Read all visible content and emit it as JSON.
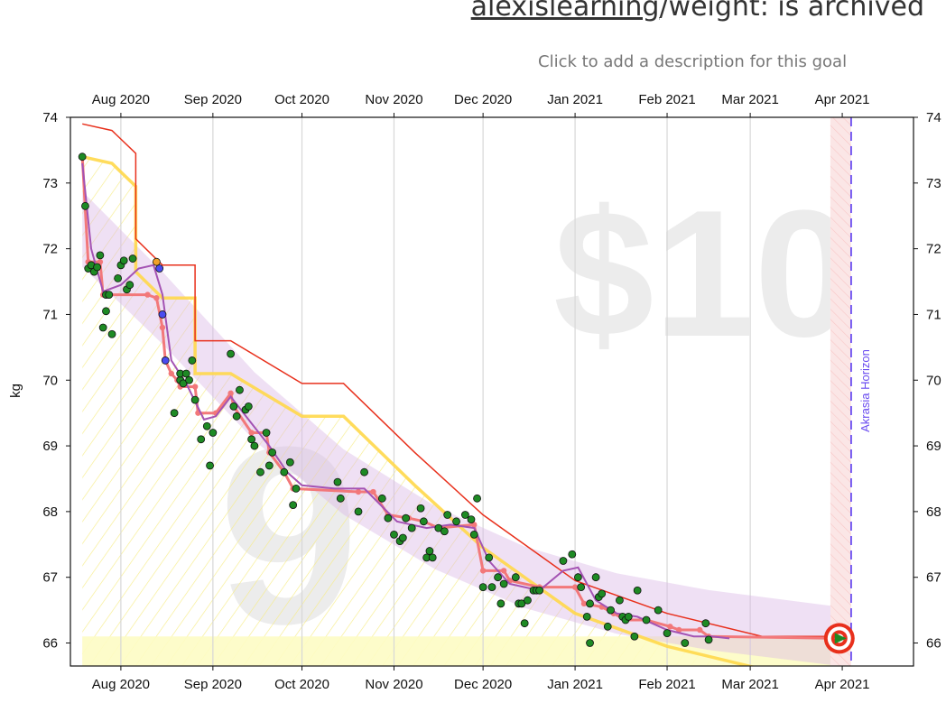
{
  "header": {
    "goal_user": "alexislearning",
    "goal_rest": "/weight: is archived",
    "description_prompt": "Click to add a description for this goal"
  },
  "chart_data": {
    "type": "scatter",
    "title": "alexislearning/weight: is archived",
    "xlabel": "",
    "ylabel": "kg",
    "x_range": [
      "2020-07-15",
      "2021-04-25"
    ],
    "ylim": [
      65.65,
      74.0
    ],
    "x_ticks": [
      {
        "date": "2020-08-01",
        "label": "Aug 2020"
      },
      {
        "date": "2020-09-01",
        "label": "Sep 2020"
      },
      {
        "date": "2020-10-01",
        "label": "Oct 2020"
      },
      {
        "date": "2020-11-01",
        "label": "Nov 2020"
      },
      {
        "date": "2020-12-01",
        "label": "Dec 2020"
      },
      {
        "date": "2021-01-01",
        "label": "Jan 2021"
      },
      {
        "date": "2021-02-01",
        "label": "Feb 2021"
      },
      {
        "date": "2021-03-01",
        "label": "Mar 2021"
      },
      {
        "date": "2021-04-01",
        "label": "Apr 2021"
      }
    ],
    "y_ticks": [
      66,
      67,
      68,
      69,
      70,
      71,
      72,
      73,
      74
    ],
    "watermark_pledge": "$10",
    "watermark_days": "9",
    "akrasia_label": "Akrasia Horizon",
    "akrasia_date": "2021-04-04",
    "target_date": "2021-03-31",
    "target_value": 66.07,
    "grid": true,
    "colors": {
      "datapoint": "#1e8a24",
      "beemin": "#f2787a",
      "moving_avg": "#a453b3",
      "road": "#e8301c",
      "yellow_brick": "#ffd84a",
      "watermark": "#ececec",
      "akrasia": "#6a4cf0"
    },
    "datapoints": [
      [
        "2020-07-19",
        73.4
      ],
      [
        "2020-07-20",
        72.65
      ],
      [
        "2020-07-21",
        71.7
      ],
      [
        "2020-07-22",
        71.75
      ],
      [
        "2020-07-23",
        71.65
      ],
      [
        "2020-07-24",
        71.72
      ],
      [
        "2020-07-25",
        71.9
      ],
      [
        "2020-07-26",
        70.8
      ],
      [
        "2020-07-27",
        71.05
      ],
      [
        "2020-07-27",
        71.3
      ],
      [
        "2020-07-28",
        71.3
      ],
      [
        "2020-07-29",
        70.7
      ],
      [
        "2020-07-31",
        71.55
      ],
      [
        "2020-08-01",
        71.75
      ],
      [
        "2020-08-02",
        71.82
      ],
      [
        "2020-08-03",
        71.38
      ],
      [
        "2020-08-04",
        71.45
      ],
      [
        "2020-08-05",
        71.85
      ],
      [
        "2020-08-19",
        69.5
      ],
      [
        "2020-08-21",
        70.0
      ],
      [
        "2020-08-21",
        70.1
      ],
      [
        "2020-08-22",
        69.95
      ],
      [
        "2020-08-23",
        70.1
      ],
      [
        "2020-08-24",
        70.0
      ],
      [
        "2020-08-25",
        70.3
      ],
      [
        "2020-08-26",
        69.7
      ],
      [
        "2020-08-28",
        69.1
      ],
      [
        "2020-08-30",
        69.3
      ],
      [
        "2020-08-31",
        68.7
      ],
      [
        "2020-09-01",
        69.2
      ],
      [
        "2020-09-07",
        70.4
      ],
      [
        "2020-09-08",
        69.6
      ],
      [
        "2020-09-09",
        69.45
      ],
      [
        "2020-09-10",
        69.85
      ],
      [
        "2020-09-12",
        69.55
      ],
      [
        "2020-09-13",
        69.6
      ],
      [
        "2020-09-14",
        69.1
      ],
      [
        "2020-09-15",
        69.0
      ],
      [
        "2020-09-17",
        68.6
      ],
      [
        "2020-09-19",
        69.2
      ],
      [
        "2020-09-20",
        68.7
      ],
      [
        "2020-09-21",
        68.9
      ],
      [
        "2020-09-25",
        68.6
      ],
      [
        "2020-09-27",
        68.75
      ],
      [
        "2020-09-28",
        68.1
      ],
      [
        "2020-09-29",
        68.35
      ],
      [
        "2020-10-13",
        68.45
      ],
      [
        "2020-10-14",
        68.2
      ],
      [
        "2020-10-20",
        68.0
      ],
      [
        "2020-10-22",
        68.6
      ],
      [
        "2020-10-28",
        68.2
      ],
      [
        "2020-10-30",
        67.9
      ],
      [
        "2020-11-01",
        67.65
      ],
      [
        "2020-11-03",
        67.55
      ],
      [
        "2020-11-04",
        67.6
      ],
      [
        "2020-11-05",
        67.9
      ],
      [
        "2020-11-07",
        67.75
      ],
      [
        "2020-11-10",
        68.05
      ],
      [
        "2020-11-11",
        67.85
      ],
      [
        "2020-11-12",
        67.3
      ],
      [
        "2020-11-13",
        67.4
      ],
      [
        "2020-11-14",
        67.3
      ],
      [
        "2020-11-16",
        67.75
      ],
      [
        "2020-11-18",
        67.7
      ],
      [
        "2020-11-19",
        67.95
      ],
      [
        "2020-11-22",
        67.85
      ],
      [
        "2020-11-25",
        67.95
      ],
      [
        "2020-11-27",
        67.88
      ],
      [
        "2020-11-28",
        67.65
      ],
      [
        "2020-11-29",
        68.2
      ],
      [
        "2020-12-01",
        66.85
      ],
      [
        "2020-12-03",
        67.3
      ],
      [
        "2020-12-04",
        66.85
      ],
      [
        "2020-12-06",
        67.0
      ],
      [
        "2020-12-07",
        66.6
      ],
      [
        "2020-12-08",
        66.9
      ],
      [
        "2020-12-12",
        67.0
      ],
      [
        "2020-12-13",
        66.6
      ],
      [
        "2020-12-14",
        66.6
      ],
      [
        "2020-12-15",
        66.3
      ],
      [
        "2020-12-16",
        66.65
      ],
      [
        "2020-12-18",
        66.8
      ],
      [
        "2020-12-19",
        66.8
      ],
      [
        "2020-12-20",
        66.8
      ],
      [
        "2020-12-28",
        67.25
      ],
      [
        "2020-12-31",
        67.35
      ],
      [
        "2021-01-02",
        67.0
      ],
      [
        "2021-01-03",
        66.85
      ],
      [
        "2021-01-05",
        66.4
      ],
      [
        "2021-01-06",
        66.6
      ],
      [
        "2021-01-08",
        67.0
      ],
      [
        "2021-01-09",
        66.7
      ],
      [
        "2021-01-10",
        66.75
      ],
      [
        "2021-01-12",
        66.25
      ],
      [
        "2021-01-13",
        66.5
      ],
      [
        "2021-01-16",
        66.65
      ],
      [
        "2021-01-17",
        66.4
      ],
      [
        "2021-01-18",
        66.35
      ],
      [
        "2021-01-19",
        66.4
      ],
      [
        "2021-01-21",
        66.1
      ],
      [
        "2021-01-22",
        66.8
      ],
      [
        "2021-01-25",
        66.35
      ],
      [
        "2021-01-29",
        66.5
      ],
      [
        "2021-02-01",
        66.15
      ],
      [
        "2021-02-07",
        66.0
      ],
      [
        "2021-02-14",
        66.3
      ],
      [
        "2021-02-15",
        66.05
      ],
      [
        "2021-01-06",
        66.0
      ]
    ],
    "blue_points": [
      [
        "2020-08-14",
        71.7
      ],
      [
        "2020-08-15",
        71.0
      ],
      [
        "2020-08-16",
        70.3
      ]
    ],
    "orange_points": [
      [
        "2020-08-13",
        71.8
      ]
    ],
    "beemin_line": [
      [
        "2020-07-19",
        73.4
      ],
      [
        "2020-07-21",
        71.8
      ],
      [
        "2020-07-25",
        71.8
      ],
      [
        "2020-07-26",
        71.3
      ],
      [
        "2020-08-10",
        71.3
      ],
      [
        "2020-08-13",
        71.25
      ],
      [
        "2020-08-15",
        70.8
      ],
      [
        "2020-08-16",
        70.3
      ],
      [
        "2020-08-18",
        70.1
      ],
      [
        "2020-08-20",
        70.0
      ],
      [
        "2020-08-21",
        69.9
      ],
      [
        "2020-08-26",
        69.9
      ],
      [
        "2020-08-27",
        69.5
      ],
      [
        "2020-09-02",
        69.5
      ],
      [
        "2020-09-07",
        69.8
      ],
      [
        "2020-09-08",
        69.6
      ],
      [
        "2020-09-14",
        69.2
      ],
      [
        "2020-09-19",
        69.2
      ],
      [
        "2020-09-20",
        68.9
      ],
      [
        "2020-09-25",
        68.6
      ],
      [
        "2020-09-28",
        68.35
      ],
      [
        "2020-10-20",
        68.3
      ],
      [
        "2020-10-25",
        68.3
      ],
      [
        "2020-10-30",
        67.95
      ],
      [
        "2020-11-06",
        67.9
      ],
      [
        "2020-11-11",
        67.85
      ],
      [
        "2020-11-16",
        67.75
      ],
      [
        "2020-11-28",
        67.8
      ],
      [
        "2020-12-01",
        67.1
      ],
      [
        "2020-12-08",
        67.1
      ],
      [
        "2020-12-10",
        66.95
      ],
      [
        "2020-12-20",
        66.85
      ],
      [
        "2021-01-01",
        66.85
      ],
      [
        "2021-01-04",
        66.6
      ],
      [
        "2021-01-10",
        66.55
      ],
      [
        "2021-01-14",
        66.45
      ],
      [
        "2021-01-18",
        66.35
      ],
      [
        "2021-01-25",
        66.35
      ],
      [
        "2021-02-02",
        66.25
      ],
      [
        "2021-02-05",
        66.2
      ],
      [
        "2021-02-12",
        66.2
      ],
      [
        "2021-02-15",
        66.1
      ],
      [
        "2021-03-31",
        66.07
      ]
    ],
    "moving_average": [
      [
        "2020-07-19",
        73.3
      ],
      [
        "2020-07-22",
        72.0
      ],
      [
        "2020-07-26",
        71.35
      ],
      [
        "2020-08-01",
        71.45
      ],
      [
        "2020-08-07",
        71.7
      ],
      [
        "2020-08-12",
        71.75
      ],
      [
        "2020-08-15",
        71.3
      ],
      [
        "2020-08-18",
        70.3
      ],
      [
        "2020-08-23",
        69.95
      ],
      [
        "2020-08-29",
        69.4
      ],
      [
        "2020-09-02",
        69.45
      ],
      [
        "2020-09-07",
        69.75
      ],
      [
        "2020-09-13",
        69.4
      ],
      [
        "2020-09-20",
        69.0
      ],
      [
        "2020-09-26",
        68.6
      ],
      [
        "2020-10-01",
        68.4
      ],
      [
        "2020-10-12",
        68.35
      ],
      [
        "2020-10-22",
        68.35
      ],
      [
        "2020-11-02",
        67.85
      ],
      [
        "2020-11-12",
        67.75
      ],
      [
        "2020-11-20",
        67.8
      ],
      [
        "2020-11-28",
        67.75
      ],
      [
        "2020-12-03",
        67.25
      ],
      [
        "2020-12-10",
        66.9
      ],
      [
        "2020-12-20",
        66.8
      ],
      [
        "2020-12-28",
        67.1
      ],
      [
        "2021-01-02",
        67.15
      ],
      [
        "2021-01-08",
        66.65
      ],
      [
        "2021-01-15",
        66.45
      ],
      [
        "2021-01-22",
        66.4
      ],
      [
        "2021-02-01",
        66.2
      ],
      [
        "2021-02-10",
        66.1
      ],
      [
        "2021-02-16",
        66.1
      ],
      [
        "2021-02-22",
        66.07
      ]
    ],
    "bright_red_line": [
      [
        "2020-07-19",
        73.9
      ],
      [
        "2020-07-29",
        73.8
      ],
      [
        "2020-08-06",
        73.45
      ],
      [
        "2020-08-06",
        72.15
      ],
      [
        "2020-08-15",
        71.75
      ],
      [
        "2020-08-15",
        71.75
      ],
      [
        "2020-08-26",
        71.75
      ],
      [
        "2020-08-26",
        70.6
      ],
      [
        "2020-09-07",
        70.6
      ],
      [
        "2020-10-01",
        69.95
      ],
      [
        "2020-10-15",
        69.95
      ],
      [
        "2020-11-08",
        68.9
      ],
      [
        "2020-12-01",
        67.95
      ],
      [
        "2021-01-01",
        66.95
      ],
      [
        "2021-02-01",
        66.45
      ],
      [
        "2021-03-05",
        66.1
      ],
      [
        "2021-03-31",
        66.1
      ]
    ],
    "yellow_road": [
      [
        "2020-07-19",
        73.4
      ],
      [
        "2020-07-29",
        73.3
      ],
      [
        "2020-08-06",
        72.95
      ],
      [
        "2020-08-06",
        71.65
      ],
      [
        "2020-08-15",
        71.25
      ],
      [
        "2020-08-26",
        71.25
      ],
      [
        "2020-08-26",
        70.1
      ],
      [
        "2020-09-07",
        70.1
      ],
      [
        "2020-10-01",
        69.45
      ],
      [
        "2020-10-15",
        69.45
      ],
      [
        "2020-11-08",
        68.4
      ],
      [
        "2020-12-01",
        67.45
      ],
      [
        "2021-01-01",
        66.45
      ],
      [
        "2021-02-01",
        65.95
      ],
      [
        "2021-03-05",
        65.6
      ]
    ],
    "pink_band_center": [
      [
        "2020-07-19",
        72.3
      ],
      [
        "2020-08-15",
        71.1
      ],
      [
        "2020-09-15",
        69.6
      ],
      [
        "2020-10-15",
        68.45
      ],
      [
        "2020-11-15",
        67.6
      ],
      [
        "2020-12-15",
        67.0
      ],
      [
        "2021-01-15",
        66.6
      ],
      [
        "2021-02-15",
        66.35
      ],
      [
        "2021-03-31",
        66.1
      ]
    ]
  }
}
